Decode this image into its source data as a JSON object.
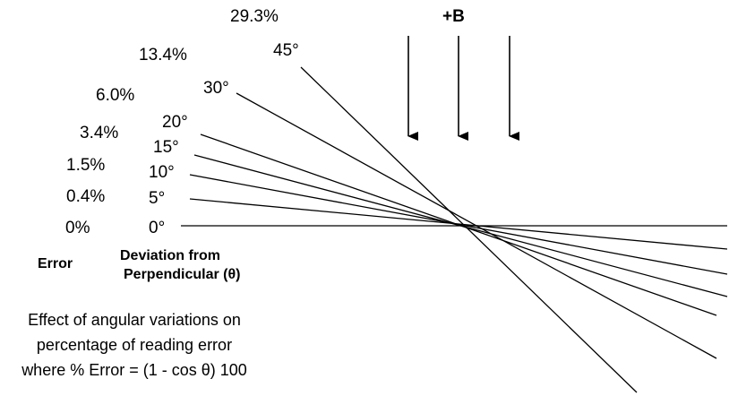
{
  "field": {
    "label": "+B"
  },
  "angle_labels": [
    "45°",
    "30°",
    "20°",
    "15°",
    "10°",
    "5°",
    "0°"
  ],
  "error_labels": [
    "29.3%",
    "13.4%",
    "6.0%",
    "3.4%",
    "1.5%",
    "0.4%",
    "0%"
  ],
  "axis": {
    "error_label": "Error",
    "deviation_line1": "Deviation from",
    "deviation_line2": "Perpendicular (θ)"
  },
  "caption": {
    "line1": "Effect of angular variations on",
    "line2": "percentage of reading error",
    "line3": "where % Error = (1 - cos θ) 100"
  }
}
